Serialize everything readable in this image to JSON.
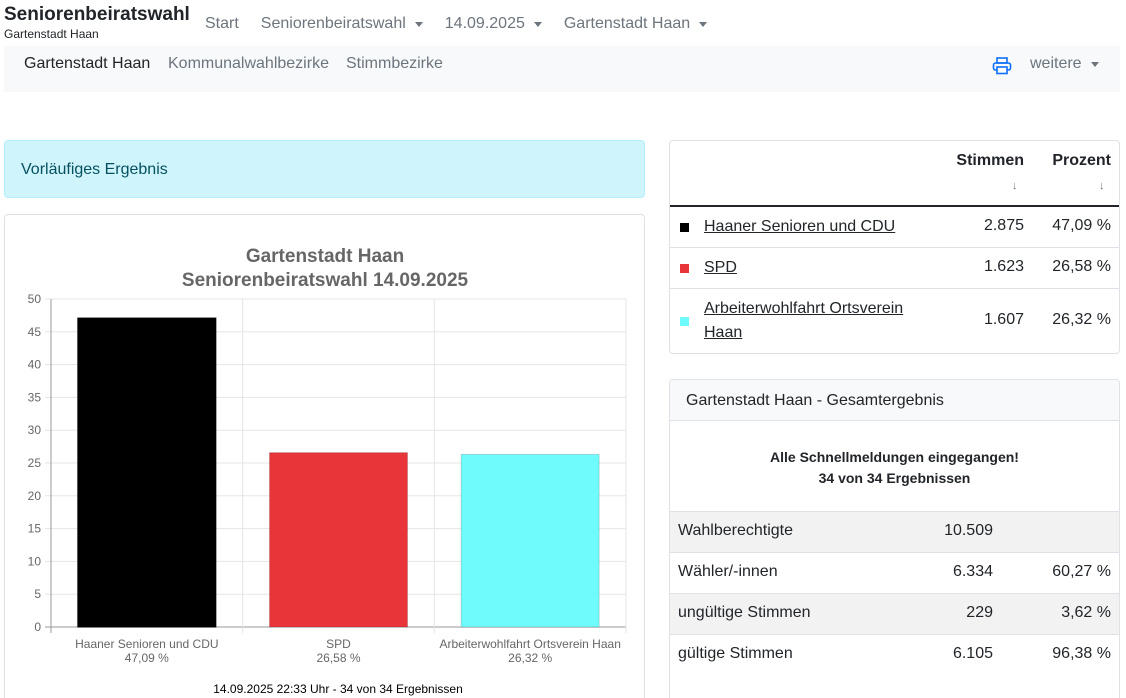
{
  "header": {
    "brand_title": "Seniorenbeiratswahl",
    "brand_subtitle": "Gartenstadt Haan",
    "nav": [
      {
        "label": "Start",
        "dropdown": false
      },
      {
        "label": "Seniorenbeiratswahl",
        "dropdown": true
      },
      {
        "label": "14.09.2025",
        "dropdown": true
      },
      {
        "label": "Gartenstadt Haan",
        "dropdown": true
      }
    ]
  },
  "subnav": {
    "tabs": [
      "Gartenstadt Haan",
      "Kommunalwahlbezirke",
      "Stimmbezirke"
    ],
    "active_tab": "Gartenstadt Haan",
    "print_icon": "printer-icon",
    "more_label": "weitere"
  },
  "alert": {
    "text": "Vorläufiges Ergebnis"
  },
  "chart_data": {
    "type": "bar",
    "title": "Gartenstadt Haan",
    "subtitle": "Seniorenbeiratswahl 14.09.2025",
    "categories": [
      "Haaner Senioren und CDU",
      "SPD",
      "Arbeiterwohlfahrt Ortsverein Haan"
    ],
    "category_value_labels": [
      "47,09 %",
      "26,58 %",
      "26,32 %"
    ],
    "values": [
      47.09,
      26.58,
      26.32
    ],
    "colors": [
      "#000000",
      "#e8353a",
      "#6ffbfb"
    ],
    "ylim": [
      0,
      50
    ],
    "yticks": [
      0,
      5,
      10,
      15,
      20,
      25,
      30,
      35,
      40,
      45,
      50
    ],
    "grid": true,
    "footer": "14.09.2025 22:33 Uhr - 34 von 34 Ergebnissen"
  },
  "results": {
    "col_votes": "Stimmen",
    "col_percent": "Prozent",
    "sort_symbol": "↓",
    "rows": [
      {
        "party": "Haaner Senioren und CDU",
        "votes": "2.875",
        "percent": "47,09 %",
        "color": "#000000"
      },
      {
        "party": "SPD",
        "votes": "1.623",
        "percent": "26,58 %",
        "color": "#e8353a"
      },
      {
        "party": "Arbeiterwohlfahrt Ortsverein Haan",
        "votes": "1.607",
        "percent": "26,32 %",
        "color": "#6ffbfb"
      }
    ]
  },
  "total": {
    "title": "Gartenstadt Haan - Gesamtergebnis",
    "status_line1": "Alle Schnellmeldungen eingegangen!",
    "status_line2": "34 von 34 Ergebnissen",
    "rows": [
      {
        "label": "Wahlberechtigte",
        "value": "10.509",
        "percent": ""
      },
      {
        "label": "Wähler/-innen",
        "value": "6.334",
        "percent": "60,27 %"
      },
      {
        "label": "ungültige Stimmen",
        "value": "229",
        "percent": "3,62 %"
      },
      {
        "label": "gültige Stimmen",
        "value": "6.105",
        "percent": "96,38 %"
      }
    ]
  }
}
